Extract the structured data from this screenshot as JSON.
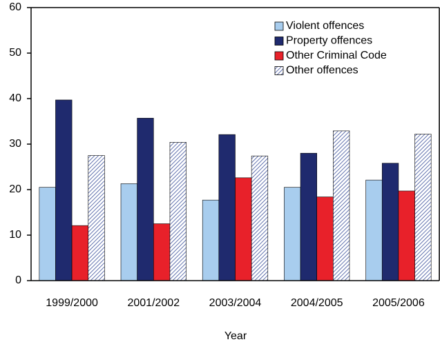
{
  "chart_data": {
    "type": "bar",
    "x_label": "Year",
    "categories": [
      "1999/2000",
      "2001/2002",
      "2003/2004",
      "2004/2005",
      "2005/2006"
    ],
    "series": [
      {
        "name": "Violent offences",
        "color": "#a8cdee",
        "values": [
          20.5,
          21.3,
          17.7,
          20.5,
          22.1
        ]
      },
      {
        "name": "Property offences",
        "color": "#1f2a6e",
        "values": [
          39.7,
          35.7,
          32.1,
          28.0,
          25.8
        ]
      },
      {
        "name": "Other Criminal Code",
        "color": "#e8212a",
        "values": [
          12.1,
          12.5,
          22.6,
          18.4,
          19.7
        ]
      },
      {
        "name": "Other offences",
        "color": "#3a4f9a",
        "hatch": true,
        "values": [
          27.5,
          30.4,
          27.4,
          32.9,
          32.2
        ]
      }
    ],
    "ylim": [
      0,
      60
    ],
    "yticks": [
      0,
      10,
      20,
      30,
      40,
      50,
      60
    ],
    "grid": false,
    "legend": "top-right"
  }
}
